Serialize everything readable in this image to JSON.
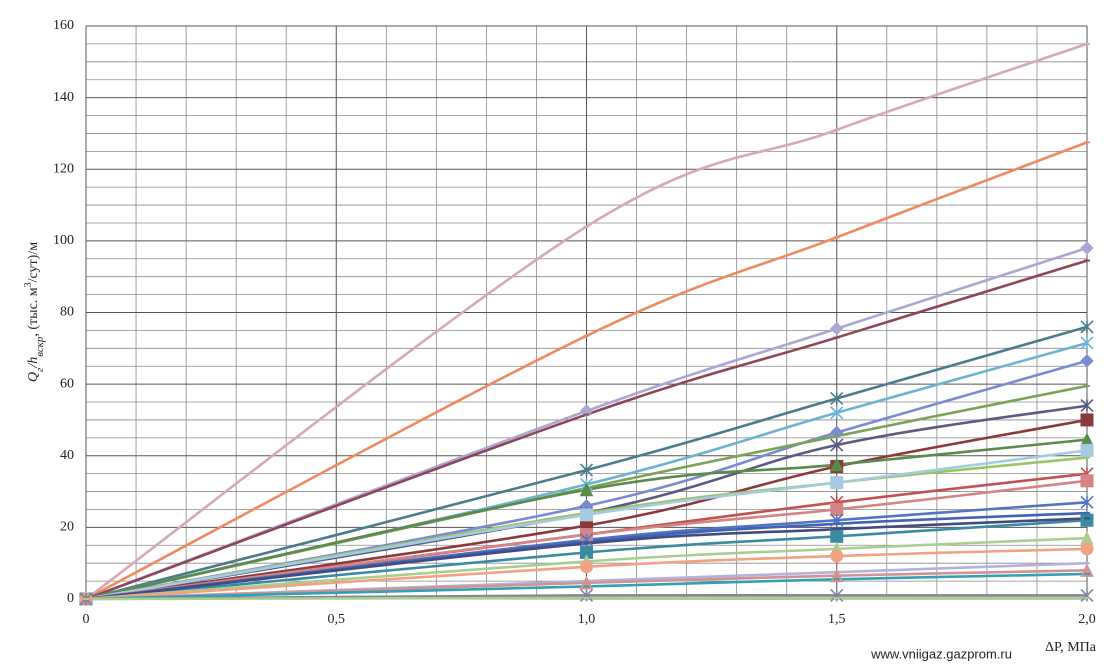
{
  "chart_data": {
    "type": "line",
    "x_label": "ΔP, МПа",
    "y_label_parts": [
      "Q",
      "г",
      "/h",
      "вскр",
      ", (тыс. м",
      "3",
      "/сут)/м"
    ],
    "source": "www.vniigaz.gazprom.ru",
    "xlim": [
      0,
      2.0
    ],
    "ylim": [
      0,
      160
    ],
    "xticks": [
      0,
      {
        "value": 0.5,
        "label": "0,5"
      },
      {
        "value": 1.0,
        "label": "1,0"
      },
      {
        "value": 1.5,
        "label": "1,5"
      },
      {
        "value": 2.0,
        "label": "2,0"
      }
    ],
    "yticks": [
      0,
      20,
      40,
      60,
      80,
      100,
      120,
      140,
      160
    ],
    "grid": true,
    "x": [
      0,
      1.0,
      1.5,
      2.0
    ],
    "series": [
      {
        "color": "#d4a9ba",
        "marker": "dash",
        "values": [
          0,
          104,
          131,
          155
        ]
      },
      {
        "color": "#ef8a5e",
        "marker": "dash",
        "values": [
          0,
          73.5,
          101,
          127.5
        ]
      },
      {
        "color": "#aaa8d2",
        "marker": "diamond",
        "values": [
          0,
          52.5,
          75.5,
          98
        ]
      },
      {
        "color": "#8c4657",
        "marker": "dash",
        "values": [
          0,
          51.5,
          73,
          94.5
        ]
      },
      {
        "color": "#4b7b8c",
        "marker": "star",
        "values": [
          0,
          36,
          56,
          76
        ]
      },
      {
        "color": "#6cb3d2",
        "marker": "star",
        "values": [
          0,
          32,
          52,
          71.5
        ]
      },
      {
        "color": "#7b8ad2",
        "marker": "diamond",
        "values": [
          0,
          26,
          46.5,
          66.5
        ]
      },
      {
        "color": "#7aa356",
        "marker": "dash",
        "values": [
          0,
          31,
          45.5,
          59.5
        ]
      },
      {
        "color": "#5b5a82",
        "marker": "star",
        "values": [
          0,
          24,
          43,
          54
        ]
      },
      {
        "color": "#8b3a3c",
        "marker": "square",
        "values": [
          0,
          20.5,
          37,
          50
        ]
      },
      {
        "color": "#5b8a4c",
        "marker": "triangle",
        "values": [
          0,
          30.5,
          37.5,
          44.5
        ]
      },
      {
        "color": "#9cc466",
        "marker": "dash",
        "values": [
          0,
          24,
          32.5,
          39.5
        ]
      },
      {
        "color": "#a4cbe2",
        "marker": "square",
        "values": [
          0,
          23.5,
          32.5,
          41.5
        ]
      },
      {
        "color": "#c25252",
        "marker": "star",
        "values": [
          0,
          18,
          27,
          35
        ]
      },
      {
        "color": "#d48484",
        "marker": "square",
        "values": [
          0,
          18,
          25,
          33
        ]
      },
      {
        "color": "#5274c2",
        "marker": "star",
        "values": [
          0,
          16.5,
          22,
          27
        ]
      },
      {
        "color": "#4262b2",
        "marker": "dash",
        "values": [
          0,
          16,
          21,
          24
        ]
      },
      {
        "color": "#3a8ba2",
        "marker": "square",
        "values": [
          0,
          13,
          17.5,
          22
        ]
      },
      {
        "color": "#424c82",
        "marker": "dash",
        "values": [
          0,
          15.5,
          19.5,
          22.5
        ]
      },
      {
        "color": "#aacd92",
        "marker": "triangle",
        "values": [
          0,
          10.5,
          14,
          17
        ]
      },
      {
        "color": "#f2a282",
        "marker": "circle",
        "values": [
          0,
          9,
          12,
          14
        ]
      },
      {
        "color": "#b2b2da",
        "marker": "dash",
        "values": [
          0,
          5,
          7.5,
          10
        ]
      },
      {
        "color": "#d29292",
        "marker": "triangle",
        "values": [
          0,
          4.5,
          6.5,
          8
        ]
      },
      {
        "color": "#32a2b2",
        "marker": "dash",
        "values": [
          0,
          3.5,
          5.5,
          7
        ]
      },
      {
        "color": "#8282a2",
        "marker": "star",
        "values": [
          0,
          1,
          1,
          1
        ]
      },
      {
        "color": "#a8d08a",
        "marker": "dash",
        "values": [
          0,
          0.3,
          0.3,
          0.3
        ]
      }
    ]
  }
}
